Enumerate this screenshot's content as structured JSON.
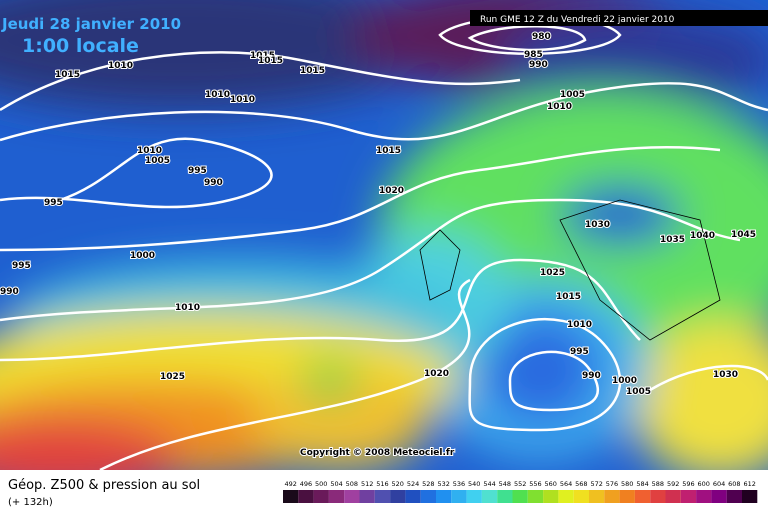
{
  "header": {
    "date": "Jeudi 28 janvier 2010",
    "time": "1:00 locale",
    "run": "Run GME 12 Z du Vendredi 22 janvier 2010"
  },
  "map": {
    "isobar_labels": [
      "1015",
      "1015",
      "1015",
      "1010",
      "1015",
      "980",
      "985",
      "990",
      "1005",
      "1010",
      "1010",
      "1010",
      "1010",
      "1005",
      "995",
      "990",
      "995",
      "1015",
      "1020",
      "1030",
      "1035",
      "1040",
      "1045",
      "995",
      "990",
      "1000",
      "1010",
      "1025",
      "1015",
      "1010",
      "995",
      "990",
      "1000",
      "1005",
      "1020",
      "1030",
      "1025"
    ],
    "copyright": "Copyright © 2008 Meteociel.fr"
  },
  "legend": {
    "title": "Géop. Z500 & pression au sol",
    "lead": "(+ 132h)",
    "scale": {
      "values": [
        492,
        496,
        500,
        504,
        508,
        512,
        516,
        520,
        524,
        528,
        532,
        536,
        540,
        544,
        548,
        552,
        556,
        560,
        564,
        568,
        572,
        576,
        580,
        584,
        588,
        592,
        596,
        600,
        604,
        608,
        612
      ],
      "colors": [
        "#1a0a1a",
        "#4a1040",
        "#6a1a5a",
        "#8a2a7a",
        "#a040a0",
        "#7040a0",
        "#5050b0",
        "#3040a0",
        "#2050c0",
        "#2070e0",
        "#2090f0",
        "#30b0f0",
        "#40d0f0",
        "#50e0d0",
        "#40e090",
        "#50e050",
        "#80e030",
        "#b0e020",
        "#e0f020",
        "#f0e020",
        "#f0c020",
        "#f0a020",
        "#f08020",
        "#f06030",
        "#e04040",
        "#d03050",
        "#c02070",
        "#a01080",
        "#800080",
        "#500050",
        "#200020"
      ]
    }
  }
}
